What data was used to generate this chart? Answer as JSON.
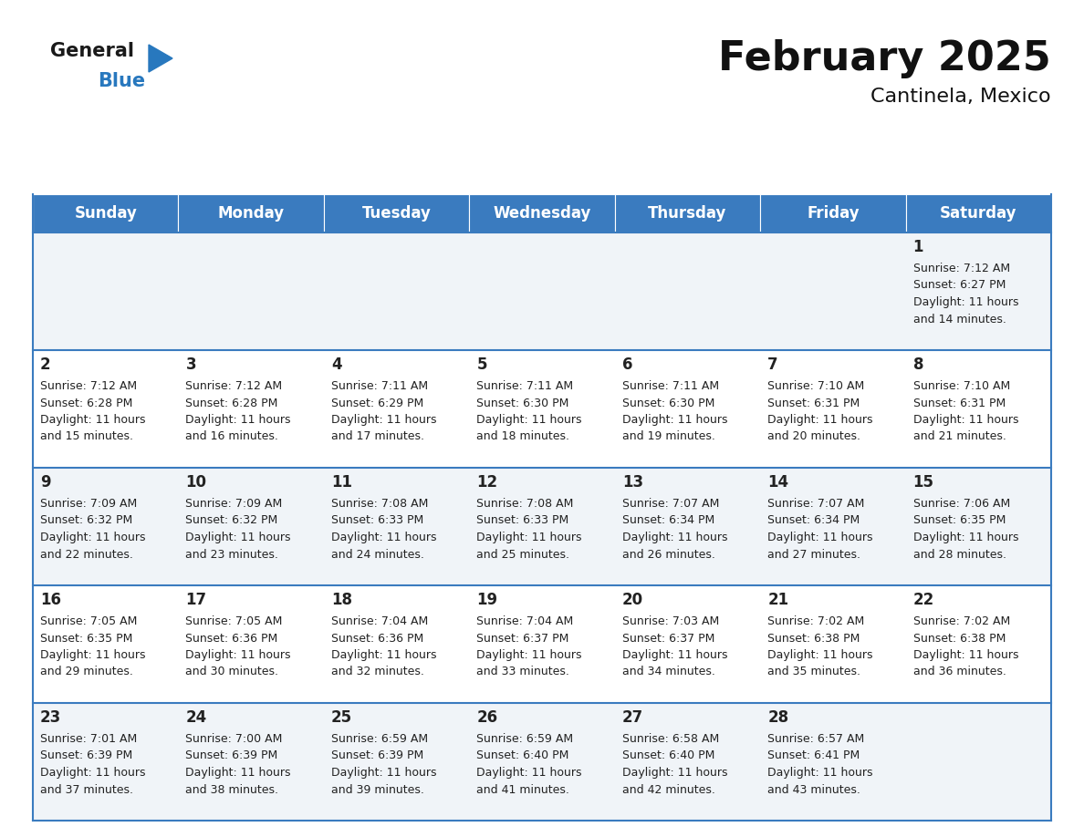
{
  "title": "February 2025",
  "subtitle": "Cantinela, Mexico",
  "header_bg_color": "#3a7bbf",
  "header_text_color": "#ffffff",
  "cell_bg_even": "#f0f4f8",
  "cell_bg_odd": "#ffffff",
  "border_color": "#3a7bbf",
  "day_names": [
    "Sunday",
    "Monday",
    "Tuesday",
    "Wednesday",
    "Thursday",
    "Friday",
    "Saturday"
  ],
  "calendar_data": [
    [
      null,
      null,
      null,
      null,
      null,
      null,
      {
        "day": 1,
        "sunrise": "7:12 AM",
        "sunset": "6:27 PM",
        "daylight": "11 hours and 14 minutes."
      }
    ],
    [
      {
        "day": 2,
        "sunrise": "7:12 AM",
        "sunset": "6:28 PM",
        "daylight": "11 hours and 15 minutes."
      },
      {
        "day": 3,
        "sunrise": "7:12 AM",
        "sunset": "6:28 PM",
        "daylight": "11 hours and 16 minutes."
      },
      {
        "day": 4,
        "sunrise": "7:11 AM",
        "sunset": "6:29 PM",
        "daylight": "11 hours and 17 minutes."
      },
      {
        "day": 5,
        "sunrise": "7:11 AM",
        "sunset": "6:30 PM",
        "daylight": "11 hours and 18 minutes."
      },
      {
        "day": 6,
        "sunrise": "7:11 AM",
        "sunset": "6:30 PM",
        "daylight": "11 hours and 19 minutes."
      },
      {
        "day": 7,
        "sunrise": "7:10 AM",
        "sunset": "6:31 PM",
        "daylight": "11 hours and 20 minutes."
      },
      {
        "day": 8,
        "sunrise": "7:10 AM",
        "sunset": "6:31 PM",
        "daylight": "11 hours and 21 minutes."
      }
    ],
    [
      {
        "day": 9,
        "sunrise": "7:09 AM",
        "sunset": "6:32 PM",
        "daylight": "11 hours and 22 minutes."
      },
      {
        "day": 10,
        "sunrise": "7:09 AM",
        "sunset": "6:32 PM",
        "daylight": "11 hours and 23 minutes."
      },
      {
        "day": 11,
        "sunrise": "7:08 AM",
        "sunset": "6:33 PM",
        "daylight": "11 hours and 24 minutes."
      },
      {
        "day": 12,
        "sunrise": "7:08 AM",
        "sunset": "6:33 PM",
        "daylight": "11 hours and 25 minutes."
      },
      {
        "day": 13,
        "sunrise": "7:07 AM",
        "sunset": "6:34 PM",
        "daylight": "11 hours and 26 minutes."
      },
      {
        "day": 14,
        "sunrise": "7:07 AM",
        "sunset": "6:34 PM",
        "daylight": "11 hours and 27 minutes."
      },
      {
        "day": 15,
        "sunrise": "7:06 AM",
        "sunset": "6:35 PM",
        "daylight": "11 hours and 28 minutes."
      }
    ],
    [
      {
        "day": 16,
        "sunrise": "7:05 AM",
        "sunset": "6:35 PM",
        "daylight": "11 hours and 29 minutes."
      },
      {
        "day": 17,
        "sunrise": "7:05 AM",
        "sunset": "6:36 PM",
        "daylight": "11 hours and 30 minutes."
      },
      {
        "day": 18,
        "sunrise": "7:04 AM",
        "sunset": "6:36 PM",
        "daylight": "11 hours and 32 minutes."
      },
      {
        "day": 19,
        "sunrise": "7:04 AM",
        "sunset": "6:37 PM",
        "daylight": "11 hours and 33 minutes."
      },
      {
        "day": 20,
        "sunrise": "7:03 AM",
        "sunset": "6:37 PM",
        "daylight": "11 hours and 34 minutes."
      },
      {
        "day": 21,
        "sunrise": "7:02 AM",
        "sunset": "6:38 PM",
        "daylight": "11 hours and 35 minutes."
      },
      {
        "day": 22,
        "sunrise": "7:02 AM",
        "sunset": "6:38 PM",
        "daylight": "11 hours and 36 minutes."
      }
    ],
    [
      {
        "day": 23,
        "sunrise": "7:01 AM",
        "sunset": "6:39 PM",
        "daylight": "11 hours and 37 minutes."
      },
      {
        "day": 24,
        "sunrise": "7:00 AM",
        "sunset": "6:39 PM",
        "daylight": "11 hours and 38 minutes."
      },
      {
        "day": 25,
        "sunrise": "6:59 AM",
        "sunset": "6:39 PM",
        "daylight": "11 hours and 39 minutes."
      },
      {
        "day": 26,
        "sunrise": "6:59 AM",
        "sunset": "6:40 PM",
        "daylight": "11 hours and 41 minutes."
      },
      {
        "day": 27,
        "sunrise": "6:58 AM",
        "sunset": "6:40 PM",
        "daylight": "11 hours and 42 minutes."
      },
      {
        "day": 28,
        "sunrise": "6:57 AM",
        "sunset": "6:41 PM",
        "daylight": "11 hours and 43 minutes."
      },
      null
    ]
  ],
  "logo_color_general": "#1a1a1a",
  "logo_color_blue": "#2878be",
  "logo_triangle_color": "#2878be",
  "title_fontsize": 32,
  "subtitle_fontsize": 16,
  "header_fontsize": 12,
  "day_num_fontsize": 12,
  "cell_fontsize": 9
}
